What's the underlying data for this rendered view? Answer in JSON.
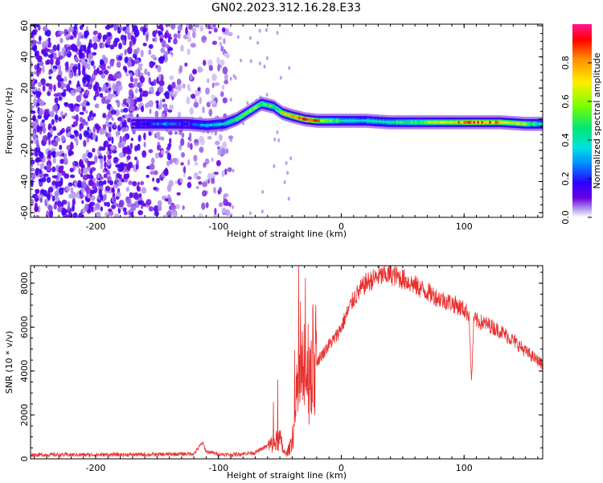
{
  "figure": {
    "title": "GN02.2023.312.16.28.E33"
  },
  "chart_data": [
    {
      "type": "heatmap",
      "xlabel": "Height of straight line (km)",
      "ylabel": "Frequency (Hz)",
      "xlim": [
        -253,
        164
      ],
      "ylim": [
        -63,
        61
      ],
      "xticks": [
        -200,
        -100,
        0,
        100
      ],
      "xtick_labels": [
        "-200",
        "-100",
        "0",
        "100"
      ],
      "yticks": [
        -60,
        -40,
        -20,
        0,
        20,
        40,
        60
      ],
      "ytick_labels": [
        "-60",
        "-40",
        "-20",
        "0",
        "20",
        "40",
        "60"
      ],
      "colorbar": {
        "label": "Normalized spectral amplitude",
        "range": [
          0,
          1
        ],
        "ticks": [
          0,
          0.2,
          0.4,
          0.6,
          0.8
        ],
        "tick_labels": [
          "0.0",
          "0.2",
          "0.4",
          "0.6",
          "0.8"
        ],
        "colormap": [
          "#ffffff",
          "#9b6fe6",
          "#6a00e0",
          "#0000ff",
          "#00c8ff",
          "#00e676",
          "#7cff00",
          "#ffee00",
          "#ff8c00",
          "#ff0000",
          "#ff1493"
        ]
      },
      "ridge": {
        "description_points": [
          {
            "x": -170,
            "y": -3,
            "amp": 0.15
          },
          {
            "x": -145,
            "y": -3,
            "amp": 0.3
          },
          {
            "x": -125,
            "y": -3,
            "amp": 0.2
          },
          {
            "x": -110,
            "y": -4,
            "amp": 0.35
          },
          {
            "x": -95,
            "y": -3,
            "amp": 0.4
          },
          {
            "x": -85,
            "y": 0,
            "amp": 0.55
          },
          {
            "x": -75,
            "y": 5,
            "amp": 0.6
          },
          {
            "x": -65,
            "y": 10,
            "amp": 0.55
          },
          {
            "x": -55,
            "y": 8,
            "amp": 0.5
          },
          {
            "x": -48,
            "y": 4,
            "amp": 0.7
          },
          {
            "x": -40,
            "y": 2,
            "amp": 0.85
          },
          {
            "x": -30,
            "y": 0,
            "amp": 0.9
          },
          {
            "x": -20,
            "y": -1,
            "amp": 0.85
          },
          {
            "x": -10,
            "y": -1,
            "amp": 0.6
          },
          {
            "x": 0,
            "y": -1,
            "amp": 0.45
          },
          {
            "x": 20,
            "y": -1,
            "amp": 0.4
          },
          {
            "x": 40,
            "y": -2,
            "amp": 0.45
          },
          {
            "x": 60,
            "y": -2,
            "amp": 0.55
          },
          {
            "x": 80,
            "y": -2,
            "amp": 0.7
          },
          {
            "x": 95,
            "y": -2,
            "amp": 0.8
          },
          {
            "x": 110,
            "y": -2,
            "amp": 0.9
          },
          {
            "x": 130,
            "y": -2,
            "amp": 0.8
          },
          {
            "x": 150,
            "y": -3,
            "amp": 0.6
          },
          {
            "x": 164,
            "y": -3,
            "amp": 0.4
          }
        ]
      },
      "noise_region_x": [
        -253,
        -90
      ]
    },
    {
      "type": "line",
      "xlabel": "Height of straight line (km)",
      "ylabel": "SNR (10 * v/v)",
      "xlim": [
        -253,
        164
      ],
      "ylim": [
        0,
        8800
      ],
      "xticks": [
        -200,
        -100,
        0,
        100
      ],
      "xtick_labels": [
        "-200",
        "-100",
        "0",
        "100"
      ],
      "yticks": [
        0,
        2000,
        4000,
        6000,
        8000
      ],
      "ytick_labels": [
        "0",
        "2000",
        "4000",
        "6000",
        "8000"
      ],
      "color": "#e8302e",
      "series": [
        {
          "x": [
            -253,
            -200,
            -150,
            -120,
            -113,
            -110,
            -100,
            -90,
            -80,
            -70,
            -62,
            -55,
            -50,
            -47,
            -45,
            -42,
            -38,
            -35,
            -30,
            -27,
            -25,
            -20,
            -15,
            -10,
            -5,
            0,
            10,
            20,
            30,
            40,
            50,
            60,
            70,
            80,
            90,
            100,
            104,
            106,
            108,
            110,
            120,
            130,
            140,
            150,
            164
          ],
          "y": [
            150,
            150,
            160,
            200,
            700,
            300,
            180,
            150,
            200,
            250,
            500,
            700,
            900,
            350,
            200,
            500,
            1500,
            3500,
            3800,
            4200,
            4300,
            4400,
            4800,
            5200,
            5500,
            6000,
            7300,
            8000,
            8300,
            8400,
            8200,
            7900,
            7600,
            7300,
            7100,
            6800,
            6600,
            3500,
            6400,
            6300,
            6100,
            5800,
            5400,
            4900,
            4300
          ]
        }
      ]
    }
  ]
}
